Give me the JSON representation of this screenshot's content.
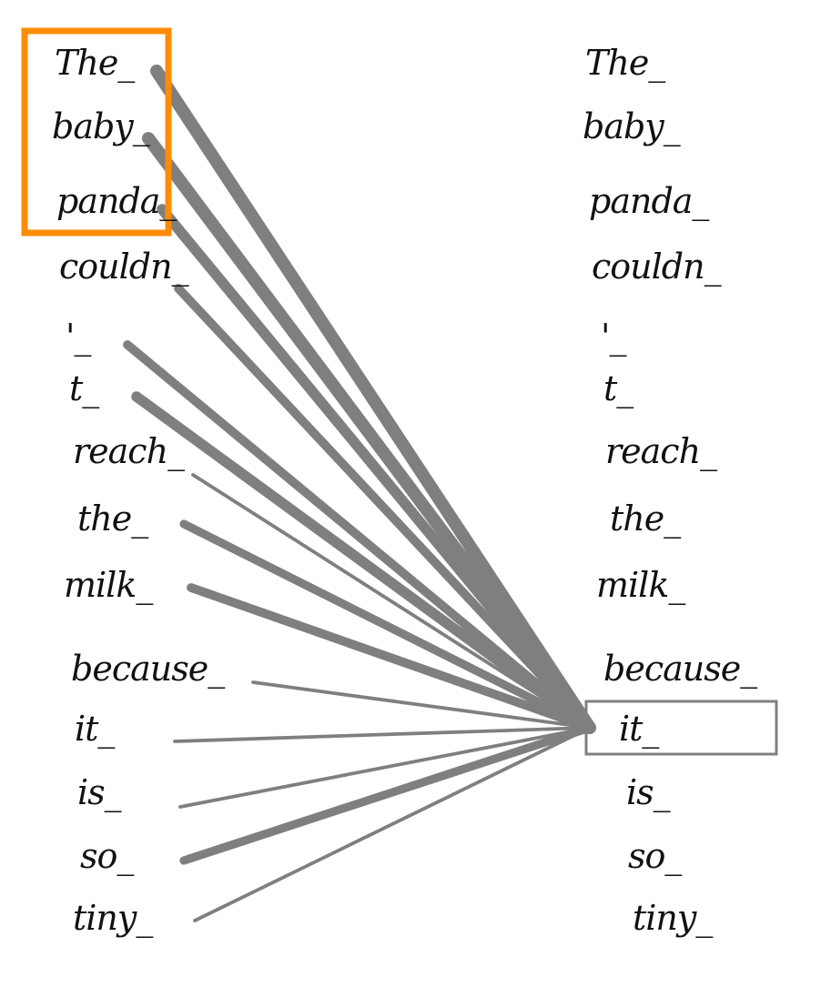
{
  "tokens": [
    "The_",
    "baby_",
    "panda_",
    "couldn_",
    "'_",
    "t_",
    "reach_",
    "the_",
    "milk_",
    "because_",
    "it_",
    "is_",
    "so_",
    "tiny_"
  ],
  "query_token_index": 10,
  "highlighted_source_span": [
    0,
    2
  ],
  "colors": {
    "edge": "#7f7f7f",
    "highlight_box": "#ff8c00",
    "query_box": "#808080",
    "text": "#111111"
  },
  "attention_weights": [
    1.0,
    1.0,
    0.8,
    0.65,
    0.65,
    0.8,
    0.15,
    0.6,
    0.65,
    0.15,
    0.15,
    0.15,
    0.6,
    0.15
  ]
}
